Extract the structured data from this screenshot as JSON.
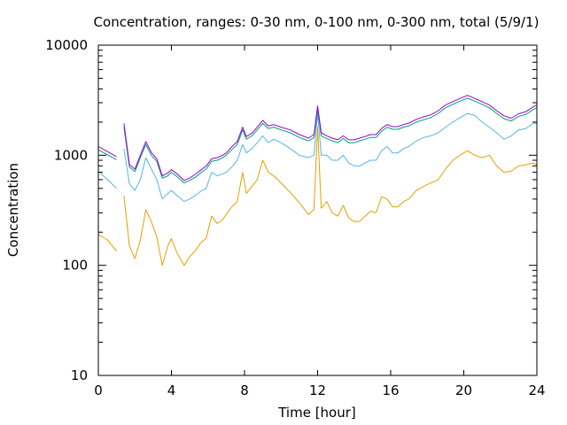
{
  "chart_data": {
    "type": "line",
    "title": "Concentration, ranges: 0-30 nm, 0-100 nm, 0-300 nm, total (5/9/1)",
    "xlabel": "Time [hour]",
    "ylabel": "Concentration",
    "xlim": [
      0,
      24
    ],
    "ylim": [
      10,
      10000
    ],
    "yscale": "log",
    "grid": false,
    "legend": "none",
    "x_ticks": [
      0,
      4,
      8,
      12,
      16,
      20,
      24
    ],
    "x_tick_labels": [
      "0",
      "4",
      "8",
      "12",
      "16",
      "20",
      "24"
    ],
    "y_ticks": [
      10,
      100,
      1000,
      10000
    ],
    "y_tick_labels": [
      "10",
      "100",
      "1000",
      "10000"
    ],
    "series": [
      {
        "color": "#e69f00",
        "x": [
          0,
          0.5,
          1.0,
          1.2,
          1.4,
          1.7,
          2.0,
          2.3,
          2.6,
          2.9,
          3.2,
          3.5,
          3.8,
          4.0,
          4.3,
          4.7,
          5.0,
          5.3,
          5.6,
          5.9,
          6.2,
          6.5,
          6.8,
          7.0,
          7.3,
          7.6,
          7.9,
          8.1,
          8.4,
          8.7,
          9.0,
          9.3,
          9.6,
          10.0,
          10.5,
          11.0,
          11.5,
          11.8,
          12.0,
          12.2,
          12.5,
          12.8,
          13.1,
          13.4,
          13.7,
          14.0,
          14.3,
          14.6,
          14.9,
          15.2,
          15.5,
          15.8,
          16.1,
          16.4,
          16.7,
          17.0,
          17.4,
          17.8,
          18.2,
          18.6,
          19.0,
          19.4,
          19.8,
          20.2,
          20.6,
          21.0,
          21.4,
          21.8,
          22.2,
          22.6,
          23.0,
          23.4,
          23.8,
          24.0
        ],
        "y": [
          190,
          170,
          135,
          null,
          430,
          150,
          115,
          170,
          320,
          250,
          180,
          100,
          150,
          175,
          130,
          100,
          120,
          135,
          160,
          175,
          280,
          240,
          260,
          290,
          340,
          380,
          700,
          450,
          520,
          600,
          900,
          700,
          650,
          560,
          460,
          370,
          290,
          320,
          1800,
          330,
          380,
          300,
          280,
          350,
          270,
          250,
          250,
          280,
          310,
          300,
          420,
          400,
          340,
          340,
          380,
          400,
          480,
          520,
          560,
          600,
          750,
          900,
          1000,
          1100,
          1000,
          950,
          1000,
          800,
          700,
          720,
          800,
          820,
          850,
          820
        ]
      },
      {
        "color": "#56b4e9",
        "x": [
          0,
          0.5,
          1.0,
          1.2,
          1.4,
          1.7,
          2.0,
          2.3,
          2.6,
          2.9,
          3.2,
          3.5,
          3.8,
          4.0,
          4.3,
          4.7,
          5.0,
          5.3,
          5.6,
          5.9,
          6.2,
          6.5,
          6.8,
          7.0,
          7.3,
          7.6,
          7.9,
          8.1,
          8.4,
          8.7,
          9.0,
          9.3,
          9.6,
          10.0,
          10.5,
          11.0,
          11.5,
          11.8,
          12.0,
          12.2,
          12.5,
          12.8,
          13.1,
          13.4,
          13.7,
          14.0,
          14.3,
          14.6,
          14.9,
          15.2,
          15.5,
          15.8,
          16.1,
          16.4,
          16.7,
          17.0,
          17.4,
          17.8,
          18.2,
          18.6,
          19.0,
          19.4,
          19.8,
          20.2,
          20.6,
          21.0,
          21.4,
          21.8,
          22.2,
          22.6,
          23.0,
          23.4,
          23.8,
          24.0
        ],
        "y": [
          720,
          600,
          500,
          null,
          1150,
          550,
          480,
          600,
          950,
          750,
          600,
          400,
          450,
          480,
          430,
          380,
          400,
          430,
          470,
          500,
          700,
          650,
          680,
          700,
          780,
          900,
          1250,
          1050,
          1150,
          1300,
          1500,
          1300,
          1400,
          1300,
          1150,
          1000,
          950,
          1000,
          2400,
          1000,
          1000,
          900,
          900,
          1000,
          850,
          800,
          800,
          850,
          900,
          900,
          1100,
          1200,
          1050,
          1050,
          1150,
          1200,
          1350,
          1450,
          1500,
          1600,
          1800,
          2000,
          2200,
          2400,
          2300,
          2000,
          1800,
          1600,
          1400,
          1500,
          1700,
          1750,
          1950,
          1950
        ]
      },
      {
        "color": "#009e73",
        "x": [
          0,
          0.5,
          1.0,
          1.2,
          1.4,
          1.7,
          2.0,
          2.3,
          2.6,
          2.9,
          3.2,
          3.5,
          3.8,
          4.0,
          4.3,
          4.7,
          5.0,
          5.3,
          5.6,
          5.9,
          6.2,
          6.5,
          6.8,
          7.0,
          7.3,
          7.6,
          7.9,
          8.1,
          8.4,
          8.7,
          9.0,
          9.3,
          9.6,
          10.0,
          10.5,
          11.0,
          11.5,
          11.8,
          12.0,
          12.2,
          12.5,
          12.8,
          13.1,
          13.4,
          13.7,
          14.0,
          14.3,
          14.6,
          14.9,
          15.2,
          15.5,
          15.8,
          16.1,
          16.4,
          16.7,
          17.0,
          17.4,
          17.8,
          18.2,
          18.6,
          19.0,
          19.4,
          19.8,
          20.2,
          20.6,
          21.0,
          21.4,
          21.8,
          22.2,
          22.6,
          23.0,
          23.4,
          23.8,
          24.0
        ],
        "y": [
          1120,
          1010,
          910,
          null,
          1800,
          780,
          710,
          950,
          1250,
          1000,
          880,
          620,
          650,
          700,
          640,
          560,
          590,
          630,
          690,
          750,
          880,
          900,
          950,
          1000,
          1120,
          1250,
          1700,
          1400,
          1500,
          1700,
          1950,
          1750,
          1800,
          1700,
          1600,
          1450,
          1350,
          1450,
          2600,
          1500,
          1420,
          1350,
          1300,
          1420,
          1300,
          1300,
          1350,
          1400,
          1450,
          1450,
          1650,
          1800,
          1720,
          1720,
          1800,
          1850,
          2000,
          2100,
          2200,
          2400,
          2700,
          2900,
          3100,
          3300,
          3100,
          2900,
          2700,
          2400,
          2150,
          2050,
          2250,
          2350,
          2600,
          2700
        ]
      },
      {
        "color": "#9400d3",
        "x": [
          0,
          0.5,
          1.0,
          1.2,
          1.4,
          1.7,
          2.0,
          2.3,
          2.6,
          2.9,
          3.2,
          3.5,
          3.8,
          4.0,
          4.3,
          4.7,
          5.0,
          5.3,
          5.6,
          5.9,
          6.2,
          6.5,
          6.8,
          7.0,
          7.3,
          7.6,
          7.9,
          8.1,
          8.4,
          8.7,
          9.0,
          9.3,
          9.6,
          10.0,
          10.5,
          11.0,
          11.5,
          11.8,
          12.0,
          12.2,
          12.5,
          12.8,
          13.1,
          13.4,
          13.7,
          14.0,
          14.3,
          14.6,
          14.9,
          15.2,
          15.5,
          15.8,
          16.1,
          16.4,
          16.7,
          17.0,
          17.4,
          17.8,
          18.2,
          18.6,
          19.0,
          19.4,
          19.8,
          20.2,
          20.6,
          21.0,
          21.4,
          21.8,
          22.2,
          22.6,
          23.0,
          23.4,
          23.8,
          24.0
        ],
        "y": [
          1200,
          1080,
          970,
          null,
          1950,
          820,
          750,
          1000,
          1330,
          1060,
          930,
          650,
          690,
          740,
          680,
          590,
          620,
          670,
          730,
          800,
          930,
          950,
          1000,
          1050,
          1190,
          1330,
          1800,
          1480,
          1580,
          1800,
          2070,
          1850,
          1900,
          1800,
          1700,
          1540,
          1430,
          1540,
          2800,
          1600,
          1500,
          1430,
          1380,
          1500,
          1380,
          1380,
          1430,
          1480,
          1540,
          1540,
          1750,
          1900,
          1820,
          1820,
          1900,
          1960,
          2120,
          2230,
          2330,
          2540,
          2860,
          3070,
          3280,
          3500,
          3280,
          3070,
          2860,
          2540,
          2280,
          2170,
          2380,
          2490,
          2750,
          2860
        ]
      }
    ]
  }
}
